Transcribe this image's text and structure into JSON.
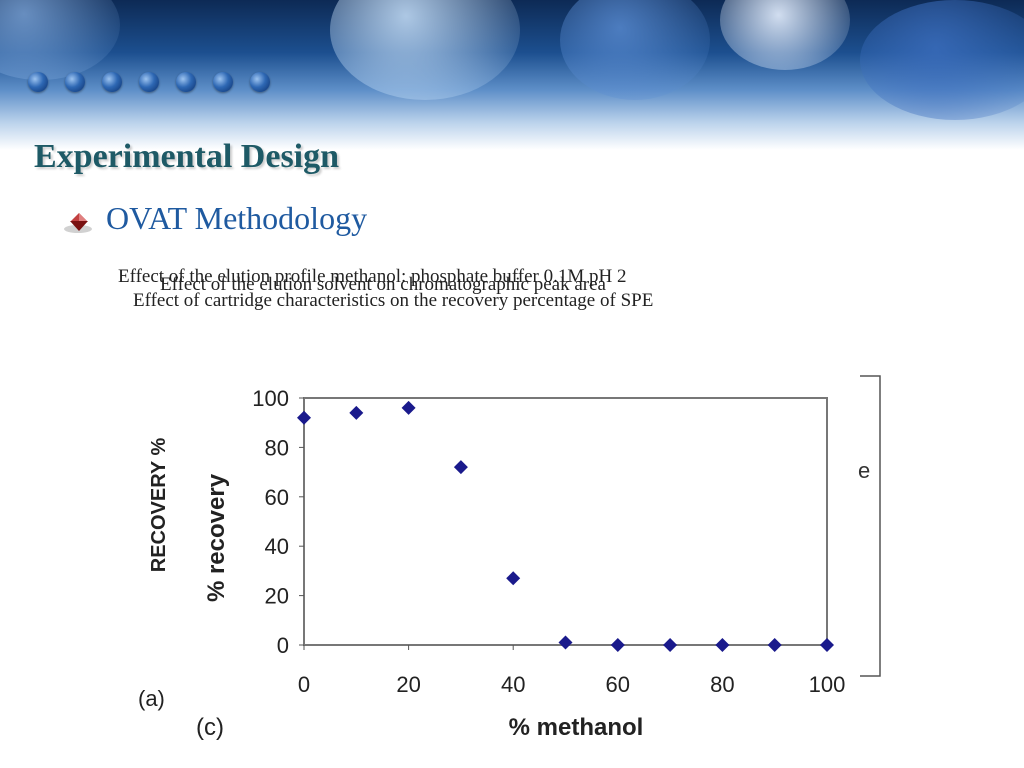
{
  "slide": {
    "title": "Experimental Design",
    "bullet": "OVAT Methodology",
    "overlay_lines": [
      "Effect of the elution profile methanol: phosphate buffer 0.1M pH 2",
      "Effect of the elution solvent on chromatographic peak area",
      "Effect of cartridge characteristics on the recovery percentage of SPE"
    ]
  },
  "chart_data": {
    "type": "scatter",
    "x": [
      0,
      10,
      20,
      30,
      40,
      50,
      60,
      70,
      80,
      90,
      100
    ],
    "y": [
      92,
      94,
      96,
      72,
      27,
      1,
      0,
      0,
      0,
      0,
      0
    ],
    "xlabel": "% methanol",
    "ylabel": "% recovery",
    "ylabel_outer": "RECOVERY %",
    "xlim": [
      0,
      100
    ],
    "ylim": [
      0,
      100
    ],
    "xticks": [
      "0",
      "20",
      "40",
      "60",
      "80",
      "100"
    ],
    "yticks": [
      "0",
      "20",
      "40",
      "60",
      "80",
      "100"
    ],
    "panel_labels": [
      "(a)",
      "(c)"
    ],
    "legend_fragment": "e",
    "marker_color": "#1a1a8c",
    "grid": false
  }
}
